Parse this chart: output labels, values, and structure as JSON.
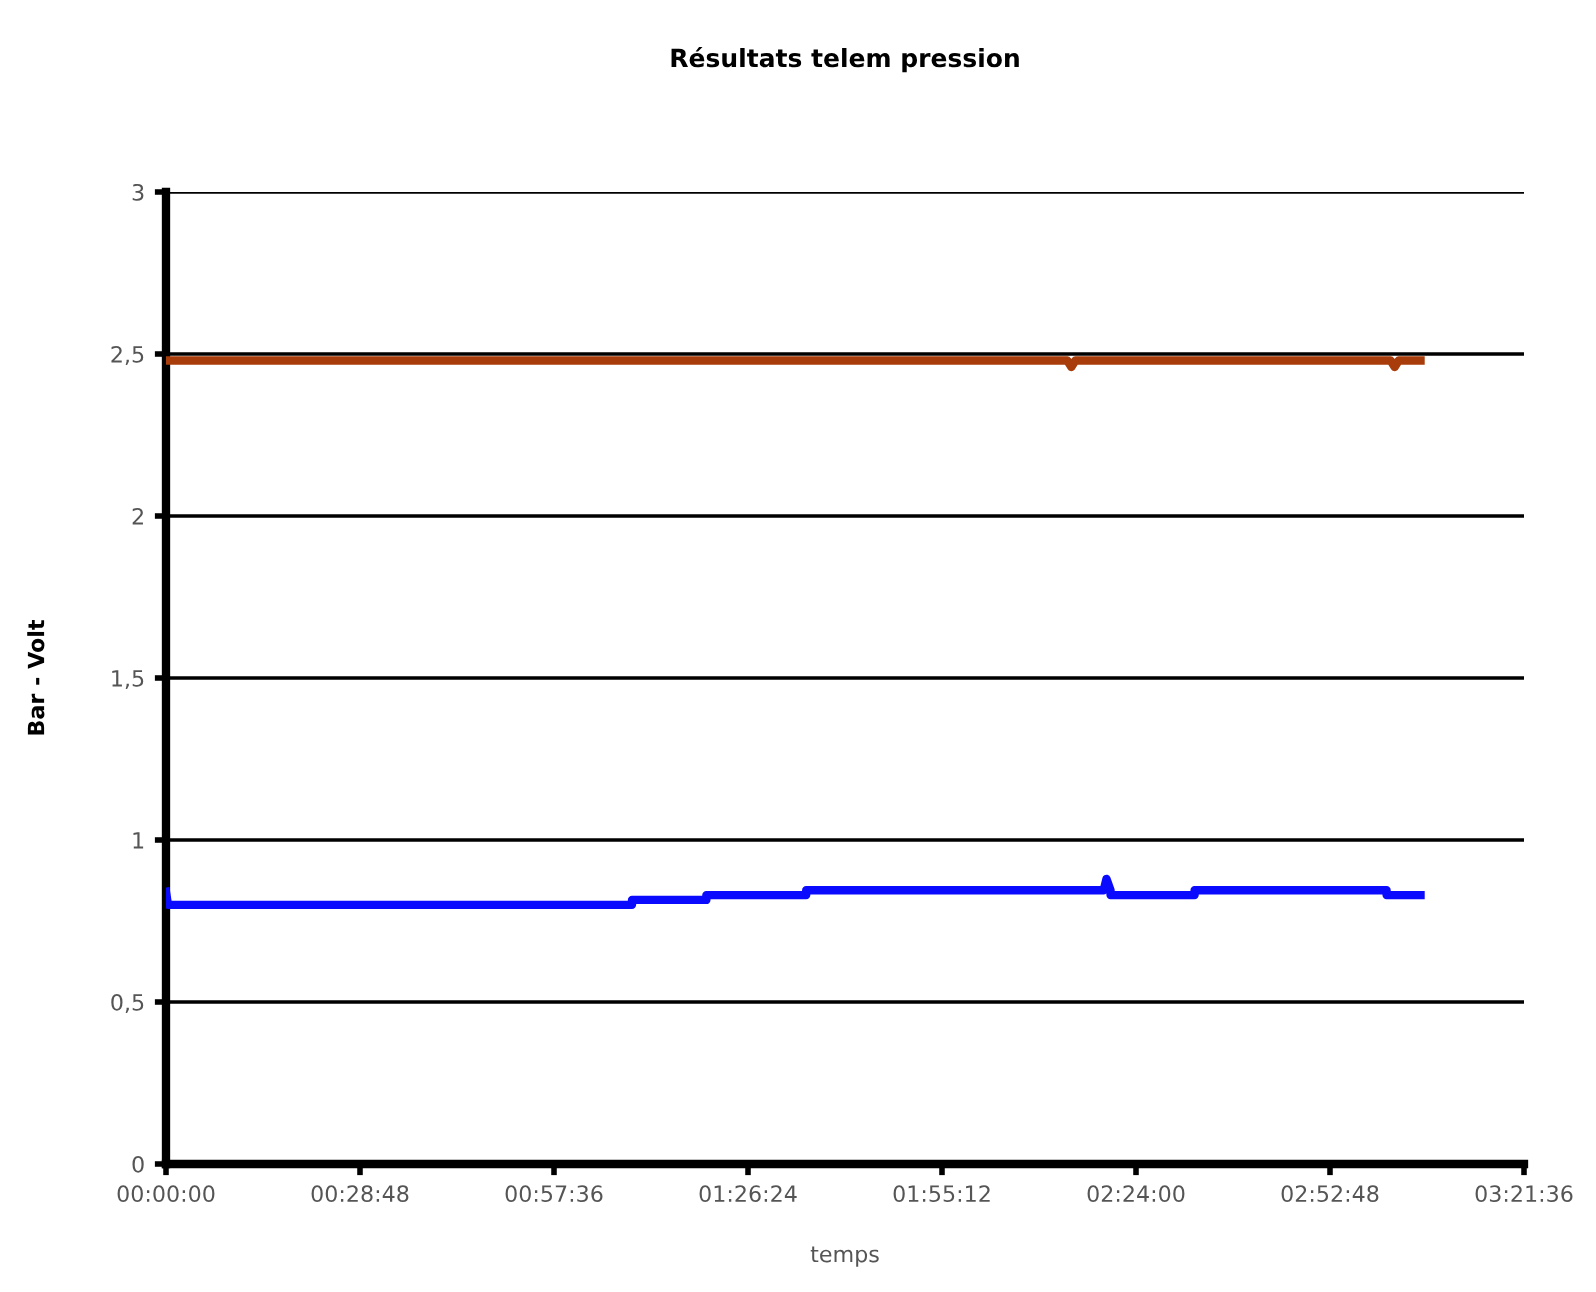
{
  "chart_data": {
    "type": "line",
    "title": "Résultats telem pression",
    "xlabel": "temps",
    "ylabel": "Bar - Volt",
    "xlim": [
      0,
      3.36
    ],
    "xticks": [
      {
        "value": 0,
        "label": "00:00:00"
      },
      {
        "value": 0.48,
        "label": "00:28:48"
      },
      {
        "value": 0.96,
        "label": "00:57:36"
      },
      {
        "value": 1.44,
        "label": "01:26:24"
      },
      {
        "value": 1.92,
        "label": "01:55:12"
      },
      {
        "value": 2.4,
        "label": "02:24:00"
      },
      {
        "value": 2.88,
        "label": "02:52:48"
      },
      {
        "value": 3.36,
        "label": "03:21:36"
      }
    ],
    "ylim": [
      0,
      3
    ],
    "yticks": [
      {
        "value": 0,
        "label": "0"
      },
      {
        "value": 0.5,
        "label": "0,5"
      },
      {
        "value": 1,
        "label": "1"
      },
      {
        "value": 1.5,
        "label": "1,5"
      },
      {
        "value": 2,
        "label": "2"
      },
      {
        "value": 2.5,
        "label": "2,5"
      },
      {
        "value": 3,
        "label": "3"
      }
    ],
    "grid": "y",
    "legend": false,
    "marker": "none",
    "line_style": "solid",
    "series": [
      {
        "color": "#a83c0a",
        "x": [
          0,
          2.23,
          2.24,
          2.25,
          3.03,
          3.04,
          3.05,
          3.104
        ],
        "values": [
          2.48,
          2.48,
          2.46,
          2.48,
          2.48,
          2.46,
          2.48,
          2.48
        ]
      },
      {
        "color": "#0a0aff",
        "x": [
          0,
          0.005,
          0.01,
          1.153,
          1.153,
          1.337,
          1.337,
          1.584,
          1.584,
          2.32,
          2.327,
          2.337,
          2.337,
          2.545,
          2.545,
          3.02,
          3.02,
          3.104
        ],
        "values": [
          0.84,
          0.8,
          0.8,
          0.8,
          0.815,
          0.815,
          0.83,
          0.83,
          0.845,
          0.845,
          0.88,
          0.845,
          0.83,
          0.83,
          0.845,
          0.845,
          0.83,
          0.83
        ]
      }
    ]
  }
}
